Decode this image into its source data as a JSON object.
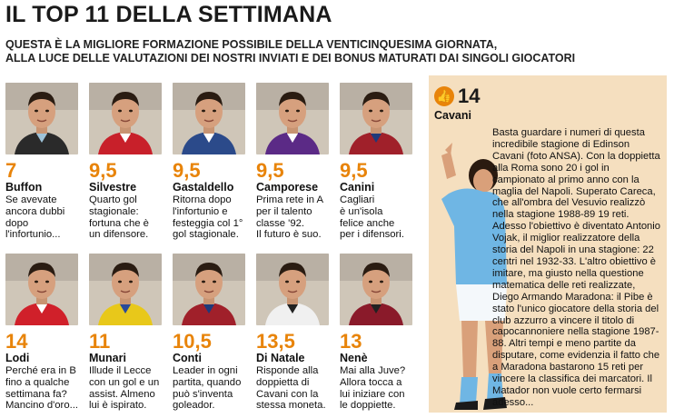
{
  "header": {
    "title": "IL TOP 11 DELLA SETTIMANA",
    "subtitle_line1": "QUESTA È LA MIGLIORE FORMAZIONE POSSIBILE DELLA VENTICINQUESIMA GIORNATA,",
    "subtitle_line2": "ALLA LUCE DELLE VALUTAZIONI DEI NOSTRI INVIATI E DEI BONUS MATURATI DAI SINGOLI GIOCATORI"
  },
  "row1": [
    {
      "score": "7",
      "name": "Buffon",
      "desc": "Se avevate\nancora dubbi\ndopo\nl'infortunio...",
      "kit": "#2a2a2a",
      "accent": "#9ec3d9"
    },
    {
      "score": "9,5",
      "name": "Silvestre",
      "desc": "Quarto gol\nstagionale:\nfortuna che è\nun difensore.",
      "kit": "#c8202a",
      "accent": "#ffffff"
    },
    {
      "score": "9,5",
      "name": "Gastaldello",
      "desc": "Ritorna dopo\nl'infortunio e\nfesteggia col 1°\ngol stagionale.",
      "kit": "#2b4a8a",
      "accent": "#ffffff"
    },
    {
      "score": "9,5",
      "name": "Camporese",
      "desc": "Prima rete in A\nper il talento\nclasse '92.\nIl futuro è suo.",
      "kit": "#5b2a86",
      "accent": "#ffffff"
    },
    {
      "score": "9,5",
      "name": "Canini",
      "desc": "Cagliari\nè un'isola\nfelice anche\nper i difensori.",
      "kit": "#a0202a",
      "accent": "#1f3a7a"
    }
  ],
  "row2": [
    {
      "score": "14",
      "name": "Lodi",
      "desc": "Perché era in B\nfino a qualche\nsettimana fa?\nMancino d'oro...",
      "kit": "#d0202a",
      "accent": "#ffffff"
    },
    {
      "score": "11",
      "name": "Munari",
      "desc": "Illude il Lecce\ncon un gol e un\nassist. Almeno\nlui è ispirato.",
      "kit": "#e8c81a",
      "accent": "#2a4a9a"
    },
    {
      "score": "10,5",
      "name": "Conti",
      "desc": "Leader in ogni\npartita, quando\npuò s'inventa\ngoleador.",
      "kit": "#a0202a",
      "accent": "#1f3a7a"
    },
    {
      "score": "13,5",
      "name": "Di Natale",
      "desc": "Risponde alla\ndoppietta di\nCavani con la\nstessa moneta.",
      "kit": "#f0f0f0",
      "accent": "#222222"
    },
    {
      "score": "13",
      "name": "Nenè",
      "desc": "Mai alla Juve?\nAllora tocca a\nlui iniziare con\nle doppiette.",
      "kit": "#8a1a2a",
      "accent": "#222222"
    }
  ],
  "feature": {
    "score": "14",
    "name": "Cavani",
    "text": "Basta guardare i numeri di questa incredibile stagione di Edinson Cavani (foto ANSA). Con la doppietta alla Roma sono 20 i gol in campionato al primo anno con la maglia del Napoli. Superato Careca, che all'ombra del Vesuvio realizzò nella stagione 1988-89 19 reti. Adesso l'obiettivo è diventato Antonio Vojak, il miglior realizzatore della storia del Napoli in una stagione: 22 centri nel 1932-33. L'altro obiettivo è imitare, ma giusto nella questione matematica delle reti realizzate, Diego Armando Maradona: il Pibe è stato l'unico giocatore della storia del club azzurro a vincere il titolo di capocannoniere nella stagione 1987-88. Altri tempi e meno partite da disputare, come evidenzia il fatto che a Maradona bastarono 15 reti per vincere la classifica dei marcatori. Il Matador non vuole certo fermarsi adesso..."
  },
  "colors": {
    "score": "#e8840a",
    "feature_bg": "#f5dfbf",
    "napoli_blue": "#6fb6e4"
  }
}
